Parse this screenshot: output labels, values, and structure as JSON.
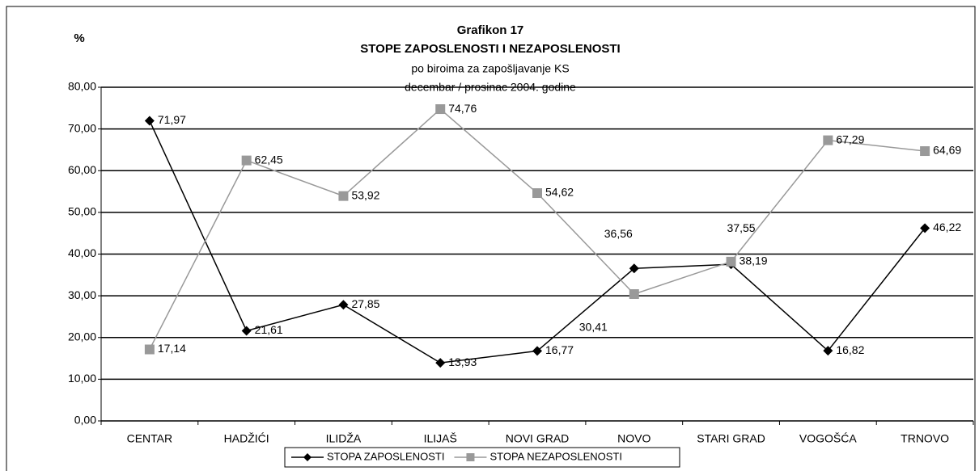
{
  "chart_data": {
    "type": "line",
    "title": "Grafikon 17",
    "subtitle": "STOPE ZAPOSLENOSTI I NEZAPOSLENOSTI",
    "subtitle2": "po biroima za zapošljavanje KS",
    "subtitle3": "decembar / prosinac 2004. godine",
    "ylabel": "%",
    "categories": [
      "CENTAR",
      "HADŽIĆI",
      "ILIDŽA",
      "ILIJAŠ",
      "NOVI GRAD",
      "NOVO",
      "STARI GRAD",
      "VOGOŠĆA",
      "TRNOVO"
    ],
    "series": [
      {
        "name": "STOPA ZAPOSLENOSTI",
        "color": "#000000",
        "marker": "diamond",
        "values": [
          71.97,
          21.61,
          27.85,
          13.93,
          16.77,
          36.56,
          37.55,
          16.82,
          46.22
        ],
        "value_labels": [
          "71,97",
          "21,61",
          "27,85",
          "13,93",
          "16,77",
          "36,56",
          "37,55",
          "16,82",
          "46,22"
        ]
      },
      {
        "name": "STOPA NEZAPOSLENOSTI",
        "color": "#999999",
        "marker": "square",
        "values": [
          17.14,
          62.45,
          53.92,
          74.76,
          54.62,
          30.41,
          38.19,
          67.29,
          64.69
        ],
        "value_labels": [
          "17,14",
          "62,45",
          "53,92",
          "74,76",
          "54,62",
          "30,41",
          "38,19",
          "67,29",
          "64,69"
        ]
      }
    ],
    "ylim": [
      0,
      80
    ],
    "yticks": [
      {
        "value": 0,
        "label": "0,00"
      },
      {
        "value": 10,
        "label": "10,00"
      },
      {
        "value": 20,
        "label": "20,00"
      },
      {
        "value": 30,
        "label": "30,00"
      },
      {
        "value": 40,
        "label": "40,00"
      },
      {
        "value": 50,
        "label": "50,00"
      },
      {
        "value": 60,
        "label": "60,00"
      },
      {
        "value": 70,
        "label": "70,00"
      },
      {
        "value": 80,
        "label": "80,00"
      }
    ],
    "grid": true,
    "legend": "bottom"
  }
}
